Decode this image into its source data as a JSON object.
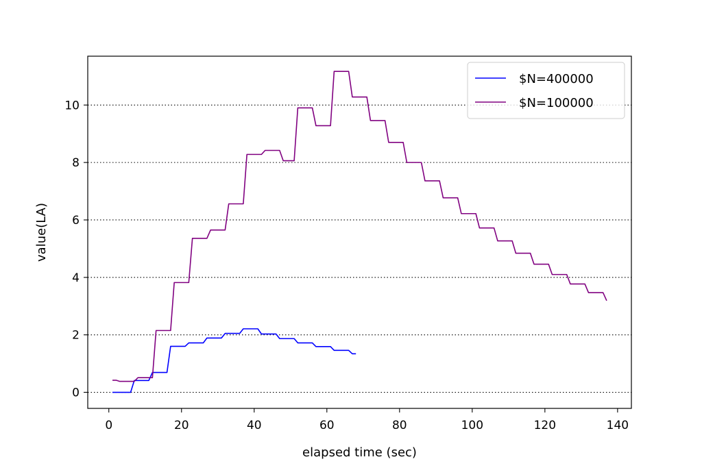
{
  "chart_data": {
    "type": "line",
    "xlabel": "elapsed time (sec)",
    "ylabel": "value(LA)",
    "xlim": [
      -5.8,
      143.8
    ],
    "ylim": [
      -0.56,
      11.7
    ],
    "xticks": [
      0,
      20,
      40,
      60,
      80,
      100,
      120,
      140
    ],
    "yticks": [
      0,
      2,
      4,
      6,
      8,
      10
    ],
    "grid": "horizontal dotted",
    "legend_position": "top-right",
    "series": [
      {
        "name": "$N=400000",
        "color": "#0000ff",
        "x": [
          1,
          6,
          7,
          11,
          12,
          16,
          17,
          21,
          22,
          26,
          27,
          31,
          32,
          36,
          37,
          41,
          42,
          46,
          47,
          51,
          52,
          56,
          57,
          61,
          62,
          66,
          67,
          68
        ],
        "y": [
          0.0,
          0.0,
          0.41,
          0.41,
          0.69,
          0.69,
          1.6,
          1.6,
          1.72,
          1.72,
          1.89,
          1.89,
          2.05,
          2.05,
          2.21,
          2.21,
          2.03,
          2.03,
          1.87,
          1.87,
          1.72,
          1.72,
          1.59,
          1.59,
          1.46,
          1.46,
          1.34,
          1.34
        ]
      },
      {
        "name": "$N=100000",
        "color": "#800080",
        "x": [
          1,
          2,
          3,
          7,
          8,
          12,
          13,
          17,
          18,
          22,
          23,
          27,
          28,
          32,
          33,
          37,
          38,
          42,
          43,
          47,
          48,
          51,
          52,
          56,
          57,
          61,
          62,
          66,
          67,
          71,
          72,
          76,
          77,
          81,
          82,
          86,
          87,
          91,
          92,
          96,
          97,
          101,
          102,
          106,
          107,
          111,
          112,
          116,
          117,
          121,
          122,
          126,
          127,
          131,
          132,
          136,
          137
        ],
        "y": [
          0.42,
          0.42,
          0.38,
          0.38,
          0.51,
          0.51,
          2.15,
          2.15,
          3.82,
          3.82,
          5.36,
          5.36,
          5.65,
          5.65,
          6.56,
          6.56,
          8.28,
          8.28,
          8.42,
          8.42,
          8.06,
          8.06,
          9.9,
          9.9,
          9.28,
          9.28,
          11.17,
          11.17,
          10.28,
          10.28,
          9.46,
          9.46,
          8.7,
          8.7,
          8.0,
          8.0,
          7.36,
          7.36,
          6.77,
          6.77,
          6.22,
          6.22,
          5.72,
          5.72,
          5.27,
          5.27,
          4.84,
          4.84,
          4.46,
          4.46,
          4.1,
          4.1,
          3.77,
          3.77,
          3.47,
          3.47,
          3.19
        ]
      }
    ]
  }
}
